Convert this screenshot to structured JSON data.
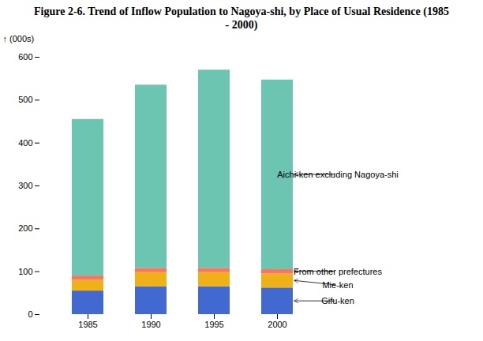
{
  "chart_data": {
    "type": "bar",
    "stacked": true,
    "title": "Figure 2-6.  Trend of Inflow Population to Nagoya-shi, by Place of Usual Residence (1985 - 2000)",
    "ylabel": "(000s)",
    "categories": [
      "1985",
      "1990",
      "1995",
      "2000"
    ],
    "series": [
      {
        "name": "Gifu-ken",
        "values": [
          55,
          65,
          65,
          62
        ]
      },
      {
        "name": "Mie-ken",
        "values": [
          25,
          33,
          33,
          33
        ]
      },
      {
        "name": "From other prefectures",
        "values": [
          10,
          10,
          10,
          10
        ]
      },
      {
        "name": "Aichi-ken excluding Nagoya-shi",
        "values": [
          365,
          427,
          462,
          442
        ]
      }
    ],
    "ylim": [
      0,
      600
    ],
    "yticks": [
      0,
      100,
      200,
      300,
      400,
      500,
      600
    ],
    "grid": false
  }
}
